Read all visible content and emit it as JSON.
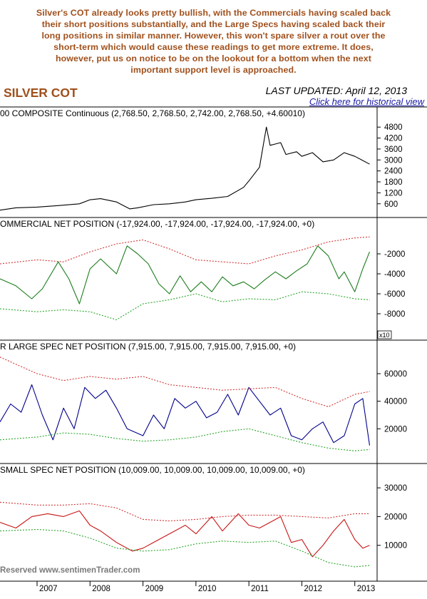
{
  "caption_lines": [
    "Silver's COT already looks pretty bullish, with the Commercials having scaled back",
    "their short positions substantially, and the Large Specs having scaled back their",
    "long positions in similar manner. However, this won't spare silver a rout over the",
    "short-term which would cause these readings to get more extreme. It does,",
    "however, put us on notice to be on the lookout for a bottom when the next",
    "important support level is approached."
  ],
  "header": {
    "title": "SILVER COT",
    "last_updated": "LAST UPDATED:  April 12, 2013",
    "historical_link": "Click here for historical view"
  },
  "footer": {
    "copyright": "Reserved  www.sentimenTrader.com"
  },
  "colors": {
    "price_line": "#000000",
    "commercial": "#1e7d1e",
    "large_spec": "#00008b",
    "small_spec": "#c81414",
    "upper_band": "#d23232",
    "lower_band": "#2aa52a",
    "caption": "#a0501c"
  },
  "chart_data": [
    {
      "type": "line",
      "title": "00 COMPOSITE Continuous (2,768.50, 2,768.50, 2,742.00, 2,768.50, +4.60010)",
      "y_ticks": [
        600,
        1200,
        1800,
        2400,
        3000,
        3600,
        4200,
        4800
      ],
      "ylim": [
        200,
        5200
      ],
      "x_ticks": [
        "2007",
        "2008",
        "2009",
        "2010",
        "2011",
        "2012",
        "2013"
      ],
      "series": [
        {
          "x": [
            2006.3,
            2006.6,
            2007.0,
            2007.4,
            2007.8,
            2008.0,
            2008.2,
            2008.5,
            2008.75,
            2008.9,
            2009.2,
            2009.5,
            2009.8,
            2010.0,
            2010.3,
            2010.6,
            2010.9,
            2011.0,
            2011.2,
            2011.33,
            2011.4,
            2011.6,
            2011.7,
            2011.9,
            2012.0,
            2012.2,
            2012.4,
            2012.6,
            2012.8,
            2013.0,
            2013.28
          ],
          "values": [
            250,
            380,
            420,
            500,
            600,
            820,
            880,
            700,
            320,
            380,
            550,
            600,
            700,
            820,
            900,
            1000,
            1500,
            1850,
            2600,
            4800,
            3800,
            3950,
            3300,
            3450,
            3200,
            3400,
            2900,
            3000,
            3400,
            3200,
            2768.5
          ]
        }
      ]
    },
    {
      "type": "line",
      "title": "OMMERCIAL NET POSITION (-17,924.00, -17,924.00, -17,924.00, -17,924.00, +0)",
      "y_ticks": [
        -8000,
        -6000,
        -4000,
        -2000
      ],
      "ylim": [
        -10000,
        0
      ],
      "axis_note": "x10",
      "series": [
        {
          "name": "Net position",
          "x": [
            2006.3,
            2006.6,
            2006.9,
            2007.1,
            2007.4,
            2007.6,
            2007.8,
            2008.0,
            2008.2,
            2008.5,
            2008.7,
            2008.9,
            2009.1,
            2009.3,
            2009.5,
            2009.7,
            2009.9,
            2010.1,
            2010.3,
            2010.5,
            2010.7,
            2010.9,
            2011.1,
            2011.3,
            2011.5,
            2011.7,
            2011.9,
            2012.1,
            2012.3,
            2012.5,
            2012.7,
            2012.8,
            2013.0,
            2013.15,
            2013.28
          ],
          "values": [
            -4500,
            -5200,
            -6500,
            -5500,
            -2800,
            -4500,
            -7000,
            -3500,
            -2500,
            -4000,
            -1200,
            -2000,
            -3000,
            -5000,
            -6000,
            -4200,
            -5800,
            -4800,
            -5800,
            -4300,
            -5200,
            -4800,
            -5500,
            -4600,
            -3800,
            -4500,
            -3700,
            -3000,
            -1200,
            -2200,
            -4500,
            -3800,
            -5800,
            -3500,
            -1792.4
          ]
        },
        {
          "name": "Upper band",
          "x": [
            2006.3,
            2007.0,
            2007.5,
            2008.0,
            2008.5,
            2009.0,
            2009.5,
            2010.0,
            2010.5,
            2011.0,
            2011.5,
            2012.0,
            2012.5,
            2013.0,
            2013.28
          ],
          "values": [
            -3000,
            -2600,
            -2800,
            -1800,
            -1000,
            -600,
            -1500,
            -2600,
            -2800,
            -3000,
            -2200,
            -1600,
            -800,
            -400,
            -300
          ]
        },
        {
          "name": "Lower band",
          "x": [
            2006.3,
            2007.0,
            2007.5,
            2008.0,
            2008.5,
            2009.0,
            2009.5,
            2010.0,
            2010.5,
            2011.0,
            2011.5,
            2012.0,
            2012.5,
            2013.0,
            2013.28
          ],
          "values": [
            -7500,
            -7800,
            -7600,
            -7800,
            -8600,
            -7000,
            -6600,
            -6000,
            -6800,
            -6500,
            -6600,
            -5800,
            -6000,
            -6500,
            -6600
          ]
        }
      ]
    },
    {
      "type": "line",
      "title": "R LARGE SPEC NET POSITION (7,915.00, 7,915.00, 7,915.00, 7,915.00, +0)",
      "y_ticks": [
        20000,
        40000,
        60000
      ],
      "ylim": [
        0,
        75000
      ],
      "series": [
        {
          "name": "Net position",
          "x": [
            2006.3,
            2006.5,
            2006.7,
            2006.9,
            2007.1,
            2007.3,
            2007.5,
            2007.7,
            2007.9,
            2008.1,
            2008.3,
            2008.5,
            2008.7,
            2009.0,
            2009.2,
            2009.4,
            2009.6,
            2009.8,
            2010.0,
            2010.2,
            2010.4,
            2010.6,
            2010.8,
            2011.0,
            2011.2,
            2011.4,
            2011.6,
            2011.8,
            2012.0,
            2012.2,
            2012.4,
            2012.6,
            2012.8,
            2013.0,
            2013.15,
            2013.28
          ],
          "values": [
            25000,
            38000,
            32000,
            52000,
            30000,
            12000,
            35000,
            20000,
            50000,
            42000,
            48000,
            35000,
            20000,
            15000,
            30000,
            20000,
            42000,
            35000,
            40000,
            28000,
            32000,
            45000,
            30000,
            50000,
            40000,
            30000,
            35000,
            15000,
            12000,
            20000,
            25000,
            10000,
            15000,
            38000,
            42000,
            7915
          ]
        },
        {
          "name": "Upper band",
          "x": [
            2006.3,
            2007.0,
            2007.5,
            2008.0,
            2008.5,
            2009.0,
            2009.5,
            2010.0,
            2010.5,
            2011.0,
            2011.5,
            2012.0,
            2012.5,
            2013.0,
            2013.28
          ],
          "values": [
            72000,
            60000,
            55000,
            58000,
            56000,
            58000,
            52000,
            50000,
            48000,
            49000,
            50000,
            42000,
            36000,
            45000,
            47000
          ]
        },
        {
          "name": "Lower band",
          "x": [
            2006.3,
            2007.0,
            2007.5,
            2008.0,
            2008.5,
            2009.0,
            2009.5,
            2010.0,
            2010.5,
            2011.0,
            2011.5,
            2012.0,
            2012.5,
            2013.0,
            2013.28
          ],
          "values": [
            12000,
            14000,
            17000,
            16000,
            13000,
            11000,
            12000,
            14000,
            18000,
            20000,
            15000,
            10000,
            6000,
            4000,
            5000
          ]
        }
      ]
    },
    {
      "type": "line",
      "title": "SMALL SPEC NET POSITION (10,009.00, 10,009.00, 10,009.00, 10,009.00, +0)",
      "y_ticks": [
        10000,
        20000,
        30000
      ],
      "ylim": [
        0,
        34000
      ],
      "series": [
        {
          "name": "Net position",
          "x": [
            2006.3,
            2006.6,
            2006.9,
            2007.2,
            2007.5,
            2007.8,
            2008.0,
            2008.2,
            2008.5,
            2008.8,
            2009.0,
            2009.3,
            2009.5,
            2009.8,
            2010.0,
            2010.3,
            2010.5,
            2010.8,
            2011.0,
            2011.2,
            2011.4,
            2011.6,
            2011.8,
            2012.0,
            2012.2,
            2012.4,
            2012.6,
            2012.8,
            2013.0,
            2013.15,
            2013.28
          ],
          "values": [
            18000,
            16000,
            20000,
            21000,
            20000,
            22000,
            17000,
            15000,
            11000,
            8000,
            9000,
            12000,
            14000,
            17000,
            14000,
            20000,
            15000,
            21000,
            17000,
            16000,
            18000,
            20000,
            11000,
            12000,
            6000,
            10000,
            15000,
            19000,
            12000,
            9000,
            10009
          ]
        },
        {
          "name": "Upper band",
          "x": [
            2006.3,
            2007.0,
            2007.5,
            2008.0,
            2008.5,
            2009.0,
            2009.5,
            2010.0,
            2010.5,
            2011.0,
            2011.5,
            2012.0,
            2012.5,
            2013.0,
            2013.28
          ],
          "values": [
            25000,
            24000,
            24000,
            24500,
            23000,
            19000,
            18500,
            19000,
            20000,
            20500,
            20500,
            20000,
            19500,
            21000,
            21000
          ]
        },
        {
          "name": "Lower band",
          "x": [
            2006.3,
            2007.0,
            2007.5,
            2008.0,
            2008.5,
            2009.0,
            2009.5,
            2010.0,
            2010.5,
            2011.0,
            2011.5,
            2012.0,
            2012.5,
            2013.0,
            2013.28
          ],
          "values": [
            15000,
            15500,
            15000,
            12500,
            9000,
            8000,
            8500,
            10500,
            11500,
            11000,
            11500,
            8000,
            4000,
            2500,
            3000
          ]
        }
      ]
    }
  ]
}
